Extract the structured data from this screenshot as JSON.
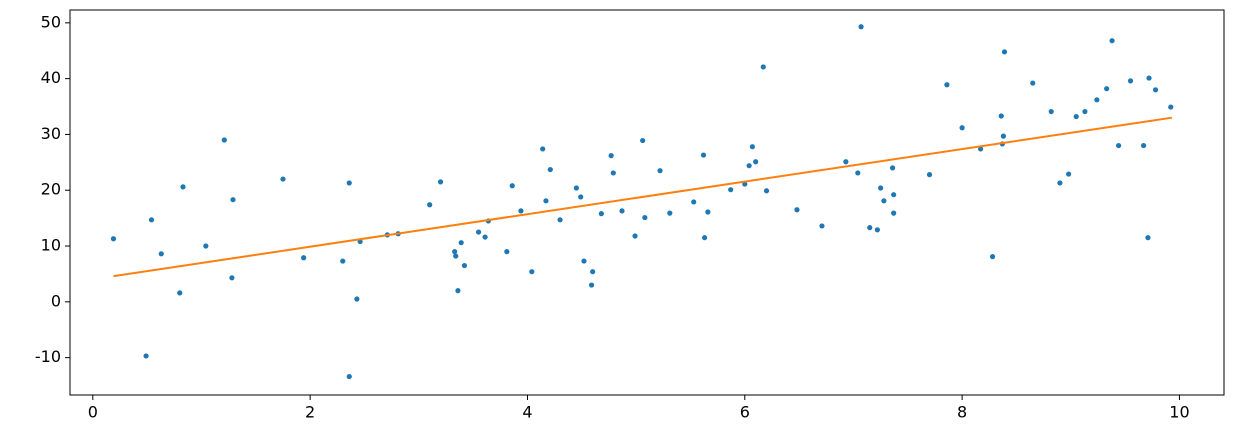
{
  "chart_data": {
    "type": "scatter",
    "xlim": [
      -0.21,
      10.41
    ],
    "ylim": [
      -16.7,
      52.3
    ],
    "xticks": [
      0,
      2,
      4,
      6,
      8,
      10
    ],
    "yticks": [
      -10,
      0,
      10,
      20,
      30,
      40,
      50
    ],
    "series": [
      {
        "mode": "markers",
        "color": "#1f77b4",
        "x": [
          0.19,
          0.49,
          0.54,
          0.63,
          0.8,
          0.83,
          1.04,
          1.21,
          1.28,
          1.29,
          1.75,
          1.94,
          2.3,
          2.36,
          2.36,
          2.43,
          2.46,
          2.71,
          2.81,
          3.1,
          3.2,
          3.33,
          3.34,
          3.36,
          3.39,
          3.42,
          3.55,
          3.61,
          3.64,
          3.81,
          3.86,
          3.94,
          4.04,
          4.14,
          4.17,
          4.21,
          4.3,
          4.45,
          4.49,
          4.52,
          4.6,
          4.59,
          4.68,
          4.77,
          4.79,
          4.87,
          4.99,
          5.06,
          5.08,
          5.22,
          5.31,
          5.53,
          5.62,
          5.63,
          5.66,
          5.87,
          6.0,
          6.04,
          6.07,
          6.1,
          6.17,
          6.2,
          6.48,
          6.71,
          6.93,
          7.04,
          7.07,
          7.15,
          7.22,
          7.25,
          7.28,
          7.36,
          7.37,
          7.37,
          7.7,
          7.86,
          8.0,
          8.17,
          8.28,
          8.36,
          8.37,
          8.38,
          8.39,
          8.65,
          8.82,
          8.9,
          8.98,
          9.05,
          9.13,
          9.24,
          9.33,
          9.38,
          9.44,
          9.55,
          9.67,
          9.71,
          9.72,
          9.78,
          9.92
        ],
        "values": [
          11.3,
          -9.7,
          14.7,
          8.6,
          1.6,
          20.6,
          10.0,
          29.0,
          4.3,
          18.3,
          22.0,
          7.9,
          7.3,
          21.3,
          -13.4,
          0.5,
          10.8,
          12.0,
          12.2,
          17.4,
          21.5,
          9.0,
          8.2,
          2.0,
          10.6,
          6.5,
          12.5,
          11.6,
          14.5,
          9.0,
          20.8,
          16.3,
          5.4,
          27.4,
          18.1,
          23.7,
          14.7,
          20.4,
          18.8,
          7.3,
          5.4,
          3.0,
          15.8,
          26.2,
          23.1,
          16.3,
          11.8,
          28.9,
          15.1,
          23.5,
          15.9,
          17.9,
          26.3,
          11.5,
          16.1,
          20.1,
          21.1,
          24.4,
          27.8,
          25.1,
          42.1,
          19.9,
          16.5,
          13.6,
          25.1,
          23.1,
          49.3,
          13.3,
          12.9,
          20.4,
          18.1,
          24.0,
          19.2,
          15.9,
          22.8,
          38.9,
          31.2,
          27.4,
          8.1,
          33.3,
          28.3,
          29.7,
          44.8,
          39.2,
          34.1,
          21.3,
          22.9,
          33.2,
          34.1,
          36.2,
          38.2,
          46.8,
          28.0,
          39.6,
          28.0,
          11.5,
          40.1,
          38.0,
          34.9
        ]
      },
      {
        "mode": "line",
        "color": "#ff7f0e",
        "x": [
          0.19,
          9.93
        ],
        "values": [
          4.6,
          33.0
        ]
      }
    ]
  }
}
